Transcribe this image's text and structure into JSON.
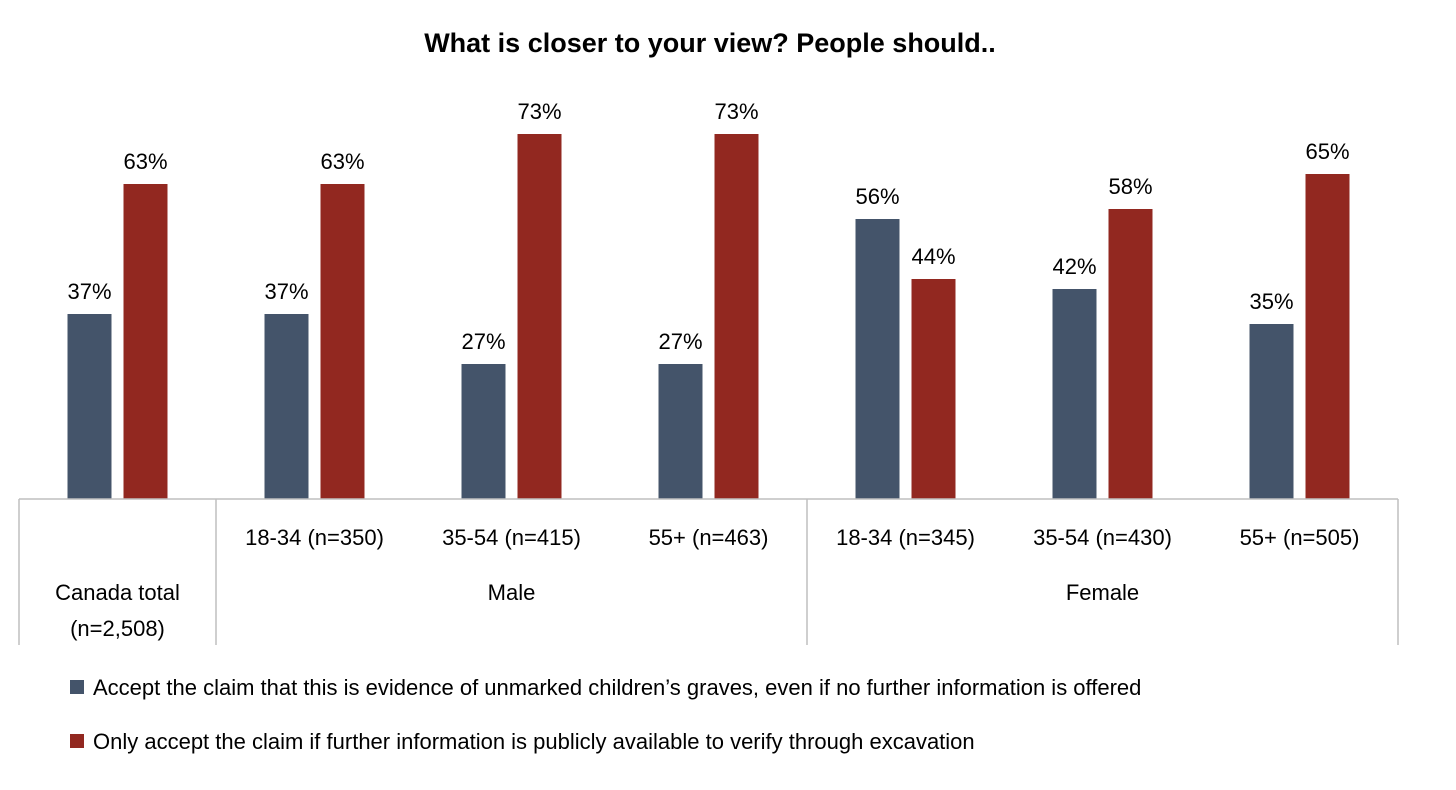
{
  "chart_data": {
    "type": "bar",
    "title": "What is closer to your view? People should..",
    "xlabel": "",
    "ylabel": "",
    "ylim": [
      0,
      80
    ],
    "value_suffix": "%",
    "grid": false,
    "legend_position": "bottom",
    "categories": [
      {
        "label": "Canada total (n=2,508)",
        "label_lines": [
          "Canada total",
          "(n=2,508)"
        ],
        "group": ""
      },
      {
        "label": "18-34 (n=350)",
        "group": "Male"
      },
      {
        "label": "35-54 (n=415)",
        "group": "Male"
      },
      {
        "label": "55+ (n=463)",
        "group": "Male"
      },
      {
        "label": "18-34 (n=345)",
        "group": "Female"
      },
      {
        "label": "35-54 (n=430)",
        "group": "Female"
      },
      {
        "label": "55+ (n=505)",
        "group": "Female"
      }
    ],
    "groups": [
      "Male",
      "Female"
    ],
    "series": [
      {
        "name": "Accept the claim that this is evidence of unmarked children’s graves, even if no further information is offered",
        "color": "#44546a",
        "values": [
          37,
          37,
          27,
          27,
          56,
          42,
          35
        ]
      },
      {
        "name": "Only accept the claim if further information is publicly available to verify through excavation",
        "color": "#922820",
        "values": [
          63,
          63,
          73,
          73,
          44,
          58,
          65
        ]
      }
    ]
  }
}
